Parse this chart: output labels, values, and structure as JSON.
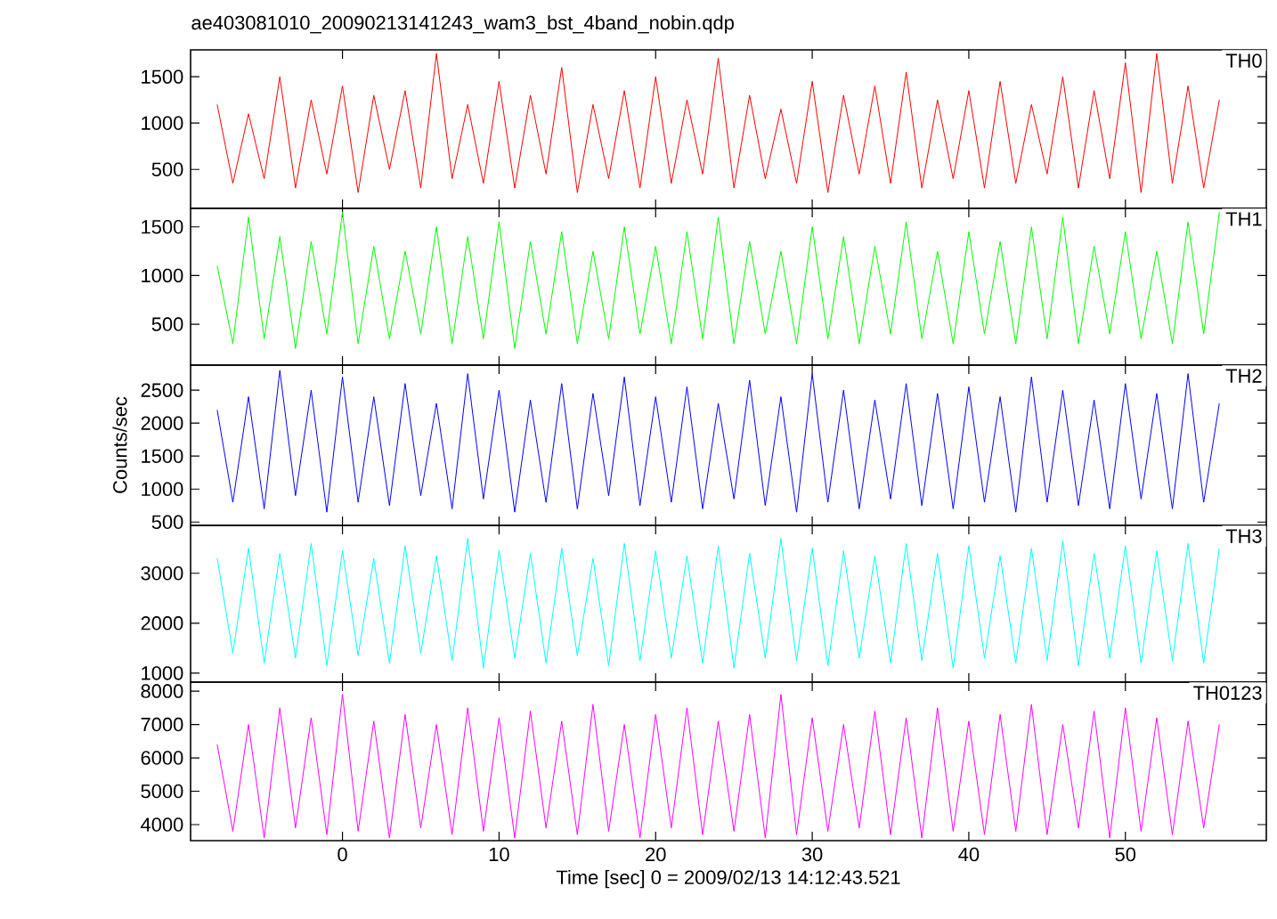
{
  "chart_data": [
    {
      "type": "line",
      "title": "ae403081010_20090213141243_wam3_bst_4band_nobin.qdp",
      "tick_labels": "y",
      "xlim": [
        -9.7,
        59
      ],
      "xticks": [
        0,
        10,
        20,
        30,
        40,
        50
      ],
      "ylim": [
        80,
        1790
      ],
      "yticks": [
        500,
        1000,
        1500
      ],
      "x": [
        -8,
        -7,
        -6,
        -5,
        -4,
        -3,
        -2,
        -1,
        0,
        1,
        2,
        3,
        4,
        5,
        6,
        7,
        8,
        9,
        10,
        11,
        12,
        13,
        14,
        15,
        16,
        17,
        18,
        19,
        20,
        21,
        22,
        23,
        24,
        25,
        26,
        27,
        28,
        29,
        30,
        31,
        32,
        33,
        34,
        35,
        36,
        37,
        38,
        39,
        40,
        41,
        42,
        43,
        44,
        45,
        46,
        47,
        48,
        49,
        50,
        51,
        52,
        53,
        54,
        55,
        56
      ],
      "series": [
        {
          "name": "TH0",
          "color": "#ff0000",
          "values": [
            1200,
            350,
            1100,
            400,
            1500,
            300,
            1250,
            450,
            1400,
            250,
            1300,
            500,
            1350,
            300,
            1750,
            400,
            1200,
            350,
            1450,
            300,
            1300,
            450,
            1600,
            250,
            1200,
            400,
            1350,
            300,
            1500,
            350,
            1250,
            450,
            1700,
            300,
            1300,
            400,
            1150,
            350,
            1450,
            250,
            1300,
            450,
            1400,
            350,
            1550,
            300,
            1250,
            400,
            1350,
            300,
            1450,
            350,
            1200,
            450,
            1500,
            300,
            1350,
            400,
            1650,
            250,
            1750,
            350,
            1400,
            300,
            1250
          ]
        }
      ]
    },
    {
      "type": "line",
      "tick_labels": "y",
      "xlim": [
        -9.7,
        59
      ],
      "xticks": [
        0,
        10,
        20,
        30,
        40,
        50
      ],
      "ylim": [
        80,
        1690
      ],
      "yticks": [
        500,
        1000,
        1500
      ],
      "x": [
        -8,
        -7,
        -6,
        -5,
        -4,
        -3,
        -2,
        -1,
        0,
        1,
        2,
        3,
        4,
        5,
        6,
        7,
        8,
        9,
        10,
        11,
        12,
        13,
        14,
        15,
        16,
        17,
        18,
        19,
        20,
        21,
        22,
        23,
        24,
        25,
        26,
        27,
        28,
        29,
        30,
        31,
        32,
        33,
        34,
        35,
        36,
        37,
        38,
        39,
        40,
        41,
        42,
        43,
        44,
        45,
        46,
        47,
        48,
        49,
        50,
        51,
        52,
        53,
        54,
        55,
        56
      ],
      "series": [
        {
          "name": "TH1",
          "color": "#00ff00",
          "values": [
            1100,
            300,
            1600,
            350,
            1400,
            250,
            1350,
            400,
            1650,
            300,
            1300,
            350,
            1250,
            400,
            1500,
            300,
            1400,
            350,
            1550,
            250,
            1350,
            400,
            1450,
            300,
            1250,
            350,
            1500,
            400,
            1300,
            300,
            1450,
            350,
            1600,
            300,
            1350,
            400,
            1250,
            300,
            1500,
            350,
            1400,
            300,
            1300,
            400,
            1550,
            350,
            1250,
            300,
            1450,
            400,
            1350,
            300,
            1500,
            350,
            1600,
            300,
            1300,
            400,
            1450,
            350,
            1250,
            300,
            1550,
            400,
            1650
          ]
        }
      ]
    },
    {
      "type": "line",
      "ylabel": "Counts/sec",
      "tick_labels": "y",
      "xlim": [
        -9.7,
        59
      ],
      "xticks": [
        0,
        10,
        20,
        30,
        40,
        50
      ],
      "ylim": [
        450,
        2880
      ],
      "yticks": [
        500,
        1000,
        1500,
        2000,
        2500
      ],
      "x": [
        -8,
        -7,
        -6,
        -5,
        -4,
        -3,
        -2,
        -1,
        0,
        1,
        2,
        3,
        4,
        5,
        6,
        7,
        8,
        9,
        10,
        11,
        12,
        13,
        14,
        15,
        16,
        17,
        18,
        19,
        20,
        21,
        22,
        23,
        24,
        25,
        26,
        27,
        28,
        29,
        30,
        31,
        32,
        33,
        34,
        35,
        36,
        37,
        38,
        39,
        40,
        41,
        42,
        43,
        44,
        45,
        46,
        47,
        48,
        49,
        50,
        51,
        52,
        53,
        54,
        55,
        56
      ],
      "series": [
        {
          "name": "TH2",
          "color": "#0000ff",
          "values": [
            2200,
            800,
            2400,
            700,
            2800,
            900,
            2500,
            650,
            2700,
            800,
            2400,
            750,
            2600,
            900,
            2300,
            700,
            2750,
            850,
            2500,
            650,
            2350,
            800,
            2600,
            700,
            2450,
            900,
            2700,
            750,
            2400,
            800,
            2550,
            700,
            2300,
            850,
            2650,
            750,
            2400,
            650,
            2750,
            800,
            2500,
            700,
            2350,
            850,
            2600,
            750,
            2450,
            700,
            2550,
            800,
            2400,
            650,
            2700,
            800,
            2500,
            750,
            2350,
            700,
            2600,
            850,
            2450,
            700,
            2750,
            800,
            2300
          ]
        }
      ]
    },
    {
      "type": "line",
      "tick_labels": "y",
      "xlim": [
        -9.7,
        59
      ],
      "xticks": [
        0,
        10,
        20,
        30,
        40,
        50
      ],
      "ylim": [
        820,
        3960
      ],
      "yticks": [
        1000,
        2000,
        3000
      ],
      "x": [
        -8,
        -7,
        -6,
        -5,
        -4,
        -3,
        -2,
        -1,
        0,
        1,
        2,
        3,
        4,
        5,
        6,
        7,
        8,
        9,
        10,
        11,
        12,
        13,
        14,
        15,
        16,
        17,
        18,
        19,
        20,
        21,
        22,
        23,
        24,
        25,
        26,
        27,
        28,
        29,
        30,
        31,
        32,
        33,
        34,
        35,
        36,
        37,
        38,
        39,
        40,
        41,
        42,
        43,
        44,
        45,
        46,
        47,
        48,
        49,
        50,
        51,
        52,
        53,
        54,
        55,
        56
      ],
      "series": [
        {
          "name": "TH3",
          "color": "#00ffff",
          "values": [
            3300,
            1400,
            3500,
            1200,
            3400,
            1300,
            3600,
            1150,
            3450,
            1350,
            3300,
            1200,
            3550,
            1400,
            3350,
            1250,
            3700,
            1100,
            3450,
            1300,
            3400,
            1200,
            3500,
            1350,
            3300,
            1150,
            3600,
            1250,
            3450,
            1300,
            3350,
            1200,
            3550,
            1100,
            3400,
            1300,
            3700,
            1250,
            3500,
            1150,
            3450,
            1300,
            3350,
            1200,
            3600,
            1250,
            3400,
            1100,
            3550,
            1300,
            3350,
            1200,
            3500,
            1250,
            3650,
            1150,
            3400,
            1300,
            3550,
            1200,
            3450,
            1250,
            3600,
            1200,
            3500
          ]
        }
      ]
    },
    {
      "type": "line",
      "xlabel": "Time [sec] 0 = 2009/02/13 14:12:43.521",
      "xlim": [
        -9.7,
        59
      ],
      "xticks": [
        0,
        10,
        20,
        30,
        40,
        50
      ],
      "ylim": [
        3520,
        8270
      ],
      "yticks": [
        4000,
        5000,
        6000,
        7000,
        8000
      ],
      "x": [
        -8,
        -7,
        -6,
        -5,
        -4,
        -3,
        -2,
        -1,
        0,
        1,
        2,
        3,
        4,
        5,
        6,
        7,
        8,
        9,
        10,
        11,
        12,
        13,
        14,
        15,
        16,
        17,
        18,
        19,
        20,
        21,
        22,
        23,
        24,
        25,
        26,
        27,
        28,
        29,
        30,
        31,
        32,
        33,
        34,
        35,
        36,
        37,
        38,
        39,
        40,
        41,
        42,
        43,
        44,
        45,
        46,
        47,
        48,
        49,
        50,
        51,
        52,
        53,
        54,
        55,
        56
      ],
      "series": [
        {
          "name": "TH0123",
          "color": "#ff00ff",
          "values": [
            6400,
            3800,
            7000,
            3600,
            7500,
            3900,
            7200,
            3700,
            7900,
            3800,
            7100,
            3600,
            7300,
            3900,
            7000,
            3700,
            7500,
            3800,
            7200,
            3600,
            7400,
            3900,
            7100,
            3700,
            7600,
            3800,
            7000,
            3600,
            7300,
            3900,
            7500,
            3700,
            7100,
            3800,
            7300,
            3600,
            7900,
            3700,
            7200,
            3800,
            7000,
            3900,
            7400,
            3700,
            7200,
            3600,
            7500,
            3800,
            7100,
            3700,
            7300,
            3800,
            7600,
            3700,
            7000,
            3900,
            7400,
            3600,
            7500,
            3800,
            7200,
            3700,
            7100,
            3900,
            7000
          ]
        }
      ]
    }
  ]
}
